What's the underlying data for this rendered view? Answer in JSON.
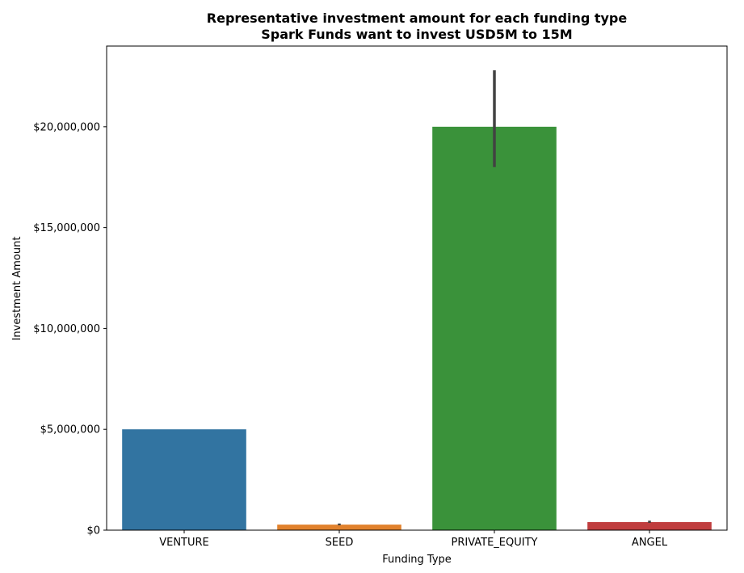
{
  "chart_data": {
    "type": "bar",
    "title_lines": [
      "Representative investment amount for each funding type",
      "Spark Funds want to invest USD5M to 15M"
    ],
    "xlabel": "Funding Type",
    "ylabel": "Investment Amount",
    "categories": [
      "VENTURE",
      "SEED",
      "PRIVATE_EQUITY",
      "ANGEL"
    ],
    "values": [
      5000000,
      275000,
      20000000,
      400000
    ],
    "error_low": [
      5000000,
      240000,
      18000000,
      360000
    ],
    "error_high": [
      5000000,
      330000,
      22800000,
      470000
    ],
    "colors": [
      "#3274a1",
      "#e1812c",
      "#3a923a",
      "#c03d3e"
    ],
    "error_color": "#424242",
    "ylim": [
      0,
      24000000
    ],
    "yticks": [
      0,
      5000000,
      10000000,
      15000000,
      20000000
    ],
    "ytick_labels": [
      "$0",
      "$5,000,000",
      "$10,000,000",
      "$15,000,000",
      "$20,000,000"
    ],
    "grid": false
  }
}
